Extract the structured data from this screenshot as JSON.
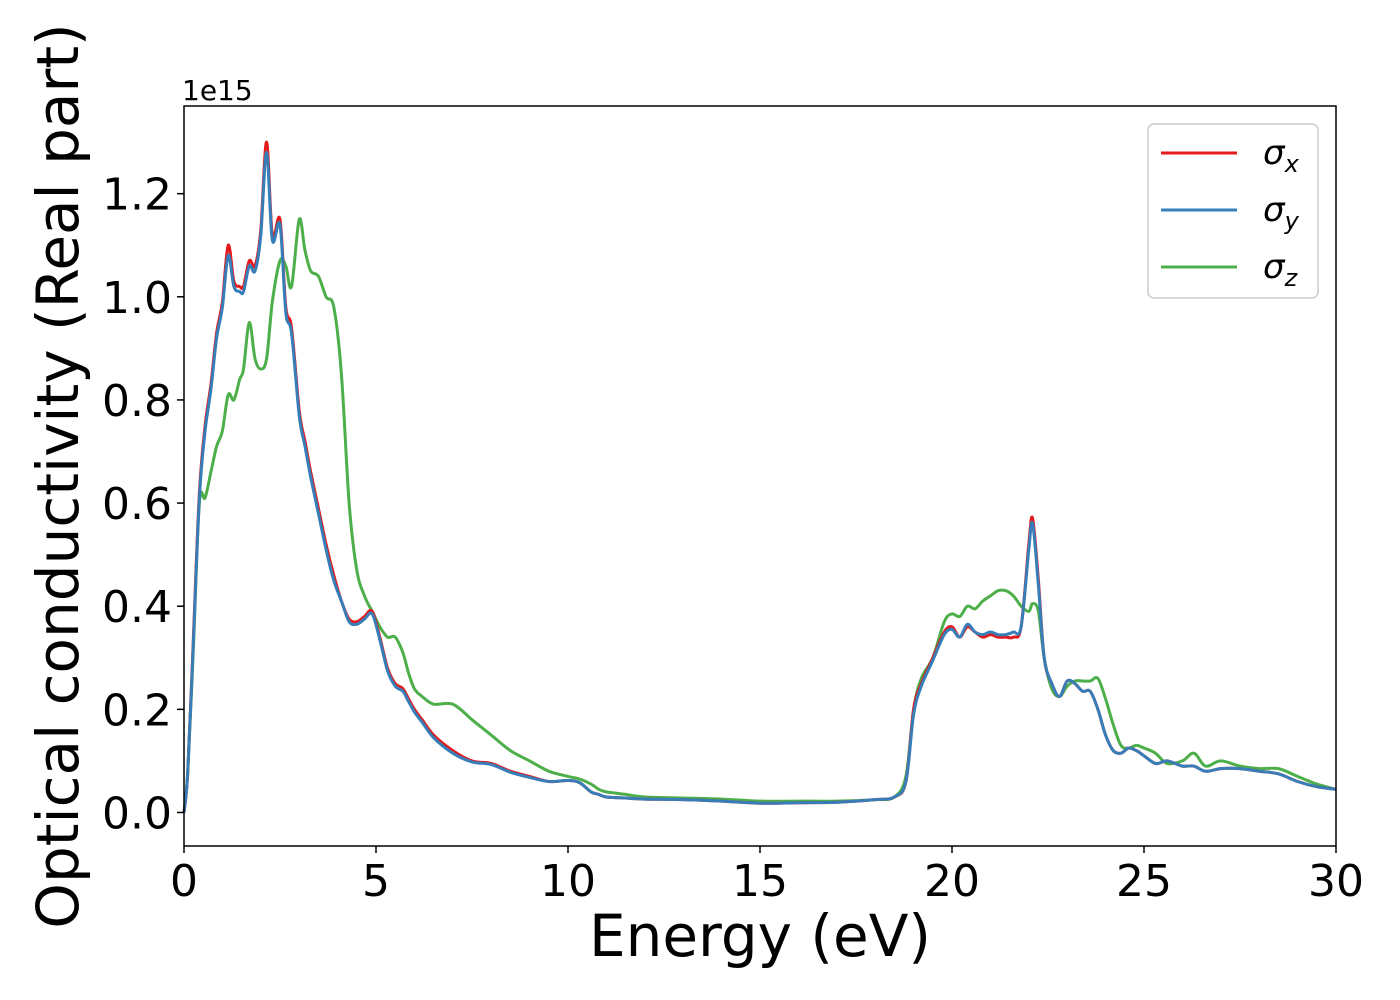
{
  "chart_data": {
    "type": "line",
    "xlabel": "Energy (eV)",
    "ylabel": "Optical conductivity (Real part)",
    "offset_text": "1e15",
    "xlim": [
      0,
      30
    ],
    "ylim": [
      -0.065,
      1.37
    ],
    "xticks": [
      0,
      5,
      10,
      15,
      20,
      25,
      30
    ],
    "xtick_labels": [
      "0",
      "5",
      "10",
      "15",
      "20",
      "25",
      "30"
    ],
    "yticks": [
      0.0,
      0.2,
      0.4,
      0.6,
      0.8,
      1.0,
      1.2
    ],
    "ytick_labels": [
      "0.0",
      "0.2",
      "0.4",
      "0.6",
      "0.8",
      "1.0",
      "1.2"
    ],
    "grid": false,
    "legend_position": "top-right",
    "series": [
      {
        "name": "σx",
        "legend_symbol": "σ",
        "legend_subscript": "x",
        "color": "#e41a1c",
        "x": [
          0,
          0.1,
          0.25,
          0.4,
          0.55,
          0.7,
          0.85,
          1.0,
          1.15,
          1.3,
          1.45,
          1.55,
          1.7,
          1.85,
          2.0,
          2.15,
          2.3,
          2.5,
          2.65,
          2.8,
          3.0,
          3.15,
          3.3,
          3.5,
          3.7,
          3.9,
          4.1,
          4.3,
          4.5,
          4.7,
          4.9,
          5.1,
          5.3,
          5.5,
          5.7,
          5.85,
          6.0,
          6.2,
          6.5,
          7.0,
          7.5,
          8.0,
          8.5,
          9.0,
          9.5,
          10.0,
          10.3,
          10.6,
          10.8,
          11.0,
          11.5,
          12.0,
          13.0,
          14.0,
          15.0,
          16.0,
          17.0,
          18.0,
          18.5,
          18.8,
          19.0,
          19.2,
          19.5,
          19.8,
          20.0,
          20.2,
          20.4,
          20.6,
          20.8,
          21.0,
          21.2,
          21.4,
          21.6,
          21.8,
          22.0,
          22.1,
          22.25,
          22.4,
          22.6,
          22.8,
          23.0,
          23.2,
          23.4,
          23.6,
          23.8,
          24.0,
          24.2,
          24.4,
          24.6,
          24.8,
          25.0,
          25.3,
          25.6,
          26.0,
          26.3,
          26.6,
          27.0,
          27.5,
          28.0,
          28.5,
          29.0,
          29.5,
          30.0
        ],
        "y": [
          0.0,
          0.08,
          0.35,
          0.62,
          0.75,
          0.83,
          0.93,
          0.99,
          1.1,
          1.03,
          1.02,
          1.02,
          1.07,
          1.06,
          1.13,
          1.3,
          1.12,
          1.15,
          0.98,
          0.94,
          0.78,
          0.72,
          0.66,
          0.59,
          0.52,
          0.46,
          0.41,
          0.375,
          0.37,
          0.38,
          0.39,
          0.34,
          0.28,
          0.25,
          0.24,
          0.22,
          0.2,
          0.18,
          0.15,
          0.12,
          0.1,
          0.095,
          0.08,
          0.07,
          0.06,
          0.062,
          0.058,
          0.04,
          0.035,
          0.03,
          0.028,
          0.026,
          0.025,
          0.022,
          0.018,
          0.019,
          0.02,
          0.025,
          0.03,
          0.06,
          0.2,
          0.25,
          0.3,
          0.35,
          0.36,
          0.34,
          0.36,
          0.35,
          0.34,
          0.345,
          0.34,
          0.34,
          0.34,
          0.36,
          0.52,
          0.57,
          0.45,
          0.3,
          0.25,
          0.225,
          0.255,
          0.25,
          0.235,
          0.235,
          0.2,
          0.15,
          0.12,
          0.115,
          0.125,
          0.12,
          0.11,
          0.095,
          0.1,
          0.09,
          0.09,
          0.08,
          0.085,
          0.085,
          0.08,
          0.075,
          0.06,
          0.05,
          0.045
        ]
      },
      {
        "name": "σy",
        "legend_symbol": "σ",
        "legend_subscript": "y",
        "color": "#377eb8",
        "x": [
          0,
          0.1,
          0.25,
          0.4,
          0.55,
          0.7,
          0.85,
          1.0,
          1.15,
          1.3,
          1.45,
          1.55,
          1.7,
          1.85,
          2.0,
          2.15,
          2.3,
          2.5,
          2.65,
          2.8,
          3.0,
          3.15,
          3.3,
          3.5,
          3.7,
          3.9,
          4.1,
          4.3,
          4.5,
          4.7,
          4.9,
          5.1,
          5.3,
          5.5,
          5.7,
          5.85,
          6.0,
          6.2,
          6.5,
          7.0,
          7.5,
          8.0,
          8.5,
          9.0,
          9.5,
          10.0,
          10.3,
          10.6,
          10.8,
          11.0,
          11.5,
          12.0,
          13.0,
          14.0,
          15.0,
          16.0,
          17.0,
          18.0,
          18.5,
          18.8,
          19.0,
          19.2,
          19.5,
          19.8,
          20.0,
          20.2,
          20.4,
          20.6,
          20.8,
          21.0,
          21.2,
          21.4,
          21.6,
          21.8,
          22.0,
          22.1,
          22.25,
          22.4,
          22.6,
          22.8,
          23.0,
          23.2,
          23.4,
          23.6,
          23.8,
          24.0,
          24.2,
          24.4,
          24.6,
          24.8,
          25.0,
          25.3,
          25.6,
          26.0,
          26.3,
          26.6,
          27.0,
          27.5,
          28.0,
          28.5,
          29.0,
          29.5,
          30.0
        ],
        "y": [
          0.0,
          0.08,
          0.34,
          0.61,
          0.74,
          0.82,
          0.92,
          0.98,
          1.08,
          1.02,
          1.01,
          1.01,
          1.06,
          1.05,
          1.12,
          1.28,
          1.11,
          1.14,
          0.97,
          0.93,
          0.77,
          0.71,
          0.65,
          0.58,
          0.51,
          0.45,
          0.41,
          0.37,
          0.365,
          0.375,
          0.385,
          0.335,
          0.275,
          0.245,
          0.235,
          0.215,
          0.195,
          0.175,
          0.145,
          0.115,
          0.098,
          0.093,
          0.078,
          0.068,
          0.06,
          0.062,
          0.058,
          0.04,
          0.035,
          0.03,
          0.028,
          0.026,
          0.025,
          0.022,
          0.018,
          0.019,
          0.02,
          0.025,
          0.03,
          0.06,
          0.19,
          0.245,
          0.295,
          0.345,
          0.355,
          0.34,
          0.365,
          0.35,
          0.345,
          0.35,
          0.345,
          0.345,
          0.35,
          0.36,
          0.51,
          0.56,
          0.44,
          0.3,
          0.25,
          0.225,
          0.255,
          0.25,
          0.235,
          0.235,
          0.2,
          0.15,
          0.12,
          0.115,
          0.125,
          0.12,
          0.11,
          0.095,
          0.1,
          0.09,
          0.09,
          0.08,
          0.085,
          0.085,
          0.08,
          0.075,
          0.06,
          0.05,
          0.045
        ]
      },
      {
        "name": "σz",
        "legend_symbol": "σ",
        "legend_subscript": "z",
        "color": "#4daf4a",
        "x": [
          0,
          0.1,
          0.25,
          0.4,
          0.55,
          0.7,
          0.85,
          1.0,
          1.15,
          1.3,
          1.45,
          1.55,
          1.7,
          1.85,
          2.0,
          2.15,
          2.3,
          2.5,
          2.65,
          2.8,
          3.0,
          3.15,
          3.3,
          3.5,
          3.7,
          3.9,
          4.1,
          4.3,
          4.5,
          4.7,
          4.9,
          5.1,
          5.3,
          5.5,
          5.7,
          5.85,
          6.0,
          6.2,
          6.5,
          7.0,
          7.5,
          8.0,
          8.5,
          9.0,
          9.5,
          10.0,
          10.3,
          10.6,
          10.8,
          11.0,
          11.5,
          12.0,
          13.0,
          14.0,
          15.0,
          16.0,
          17.0,
          18.0,
          18.5,
          18.8,
          19.0,
          19.2,
          19.5,
          19.8,
          20.0,
          20.2,
          20.4,
          20.6,
          20.8,
          21.0,
          21.2,
          21.4,
          21.6,
          21.8,
          22.0,
          22.1,
          22.25,
          22.4,
          22.6,
          22.8,
          23.0,
          23.2,
          23.4,
          23.6,
          23.8,
          24.0,
          24.2,
          24.4,
          24.6,
          24.8,
          25.0,
          25.3,
          25.6,
          26.0,
          26.3,
          26.6,
          27.0,
          27.5,
          28.0,
          28.5,
          29.0,
          29.5,
          30.0
        ],
        "y": [
          0.0,
          0.08,
          0.33,
          0.6,
          0.61,
          0.66,
          0.71,
          0.74,
          0.81,
          0.8,
          0.84,
          0.86,
          0.95,
          0.88,
          0.86,
          0.88,
          0.99,
          1.07,
          1.06,
          1.02,
          1.15,
          1.09,
          1.05,
          1.04,
          1.0,
          0.98,
          0.85,
          0.6,
          0.47,
          0.42,
          0.39,
          0.36,
          0.34,
          0.34,
          0.31,
          0.27,
          0.24,
          0.225,
          0.21,
          0.21,
          0.18,
          0.15,
          0.12,
          0.1,
          0.08,
          0.07,
          0.065,
          0.055,
          0.045,
          0.04,
          0.035,
          0.03,
          0.028,
          0.026,
          0.022,
          0.022,
          0.022,
          0.025,
          0.03,
          0.07,
          0.2,
          0.26,
          0.3,
          0.37,
          0.385,
          0.38,
          0.4,
          0.395,
          0.41,
          0.42,
          0.43,
          0.43,
          0.42,
          0.4,
          0.39,
          0.405,
          0.39,
          0.3,
          0.24,
          0.225,
          0.245,
          0.255,
          0.255,
          0.255,
          0.26,
          0.22,
          0.17,
          0.13,
          0.125,
          0.13,
          0.125,
          0.115,
          0.095,
          0.1,
          0.115,
          0.09,
          0.1,
          0.09,
          0.085,
          0.085,
          0.07,
          0.055,
          0.045
        ]
      }
    ]
  }
}
